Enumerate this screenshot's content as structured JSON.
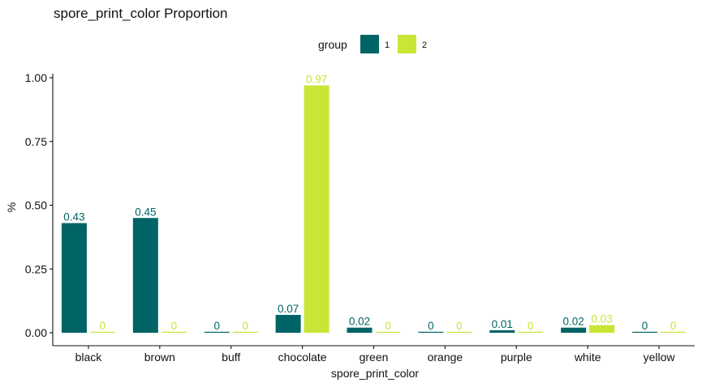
{
  "chart_data": {
    "type": "bar",
    "title": "spore_print_color Proportion",
    "xlabel": "spore_print_color",
    "ylabel": "%",
    "categories": [
      "black",
      "brown",
      "buff",
      "chocolate",
      "green",
      "orange",
      "purple",
      "white",
      "yellow"
    ],
    "series": [
      {
        "name": "1",
        "color": "#006466",
        "values": [
          0.43,
          0.45,
          0,
          0.07,
          0.02,
          0,
          0.01,
          0.02,
          0
        ],
        "labels": [
          "0.43",
          "0.45",
          "0",
          "0.07",
          "0.02",
          "0",
          "0.01",
          "0.02",
          "0"
        ]
      },
      {
        "name": "2",
        "color": "#c7e635",
        "values": [
          0,
          0,
          0,
          0.97,
          0,
          0,
          0,
          0.03,
          0
        ],
        "labels": [
          "0",
          "0",
          "0",
          "0.97",
          "0",
          "0",
          "0",
          "0.03",
          "0"
        ]
      }
    ],
    "ylim": [
      0,
      1.0
    ],
    "yticks": [
      0,
      0.25,
      0.5,
      0.75,
      1.0
    ],
    "ytick_labels": [
      "0.00",
      "0.25",
      "0.50",
      "0.75",
      "1.00"
    ],
    "legend": {
      "title": "group",
      "position": "top"
    },
    "grid": false
  }
}
